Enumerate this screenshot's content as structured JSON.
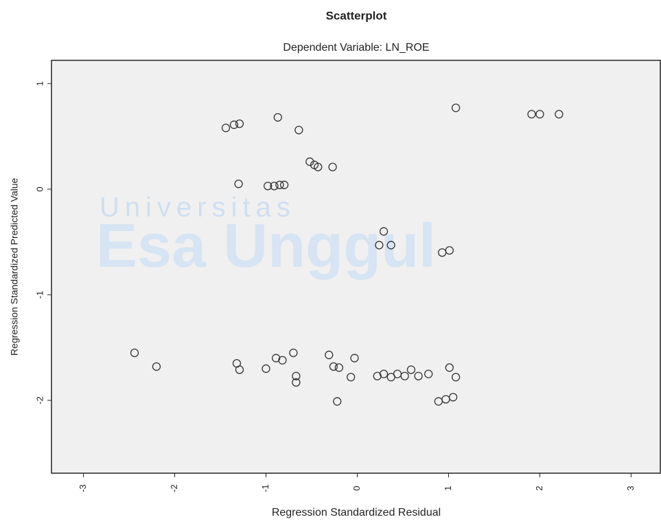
{
  "chart_data": {
    "type": "scatter",
    "title": "Scatterplot",
    "subtitle": "Dependent Variable: LN_ROE",
    "xlabel": "Regression Standardized Residual",
    "ylabel": "Regression Standardized Predicted Value",
    "watermark": [
      "Universitas",
      "Esa Unggul"
    ],
    "color": "#333333",
    "background": "#f0f0f0",
    "xlim": [
      -3.35,
      3.32
    ],
    "ylim": [
      -2.69,
      1.22
    ],
    "xticks": [
      -3,
      -2,
      -1,
      0,
      1,
      2,
      3
    ],
    "yticks": [
      1,
      0,
      -1,
      -2
    ],
    "x": [
      -1.44,
      -1.35,
      -1.29,
      -0.87,
      -0.64,
      1.08,
      1.91,
      2.0,
      2.21,
      -0.52,
      -0.47,
      -0.43,
      -0.27,
      -1.3,
      -0.98,
      -0.91,
      -0.85,
      -0.8,
      0.29,
      0.24,
      0.37,
      0.93,
      1.01,
      -2.44,
      -2.2,
      -1.32,
      -1.29,
      -1.0,
      -0.89,
      -0.82,
      -0.7,
      -0.67,
      -0.67,
      -0.31,
      -0.26,
      -0.2,
      -0.03,
      -0.07,
      -0.22,
      0.22,
      0.29,
      0.37,
      0.44,
      0.52,
      0.59,
      0.67,
      0.78,
      1.01,
      1.08,
      0.89,
      0.97,
      1.05
    ],
    "values": [
      0.58,
      0.61,
      0.62,
      0.68,
      0.56,
      0.77,
      0.71,
      0.71,
      0.71,
      0.26,
      0.23,
      0.21,
      0.21,
      0.05,
      0.03,
      0.03,
      0.04,
      0.04,
      -0.4,
      -0.53,
      -0.53,
      -0.6,
      -0.58,
      -1.55,
      -1.68,
      -1.65,
      -1.71,
      -1.7,
      -1.6,
      -1.62,
      -1.55,
      -1.77,
      -1.83,
      -1.57,
      -1.68,
      -1.69,
      -1.6,
      -1.78,
      -2.01,
      -1.77,
      -1.75,
      -1.78,
      -1.75,
      -1.77,
      -1.71,
      -1.77,
      -1.75,
      -1.69,
      -1.78,
      -2.01,
      -1.99,
      -1.97
    ]
  }
}
